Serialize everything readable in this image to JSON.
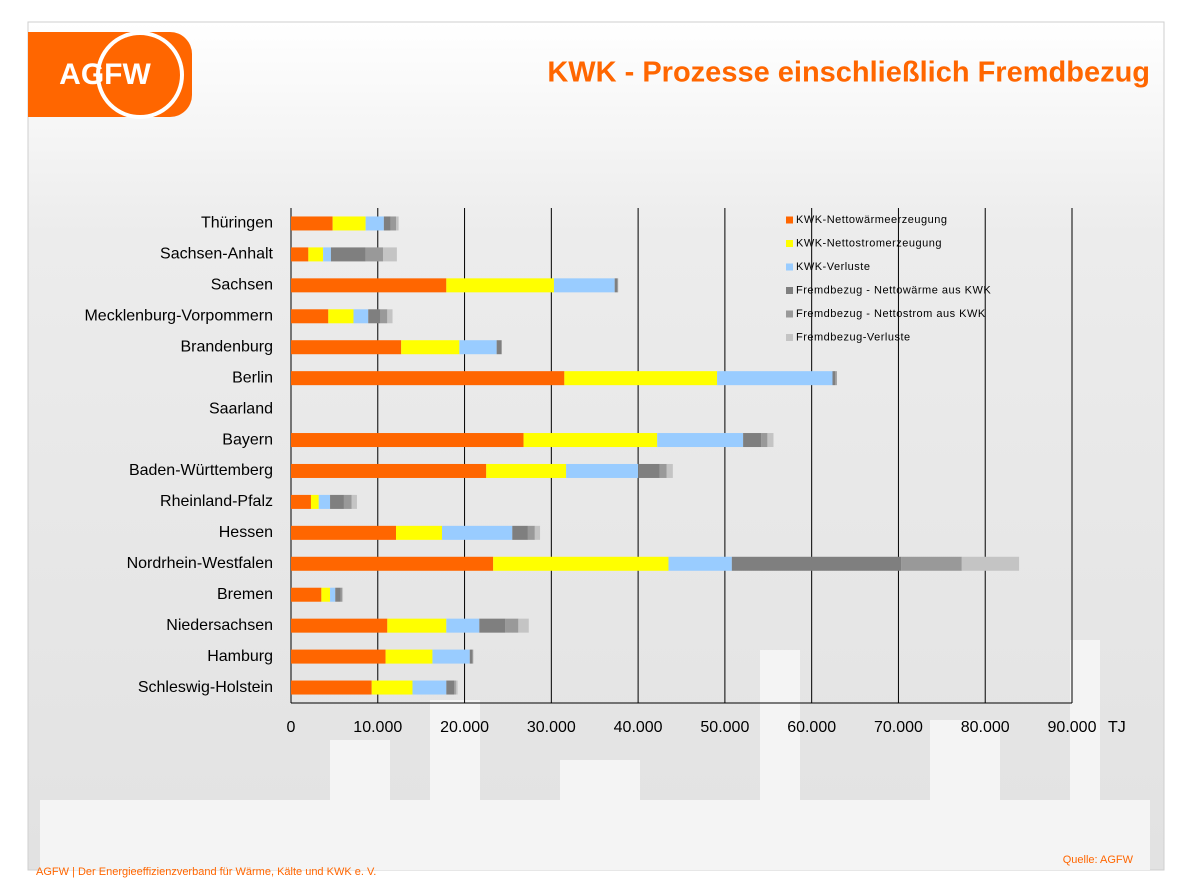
{
  "logo": "AGFW",
  "title": "KWK - Prozesse einschließlich Fremdbezug",
  "footer": "AGFW | Der Energieeffizienzverband für Wärme, Kälte und KWK e. V.",
  "source": "Quelle: AGFW",
  "chart_data": {
    "type": "stacked_bar_horizontal",
    "categories": [
      "Thüringen",
      "Sachsen-Anhalt",
      "Sachsen",
      "Mecklenburg-Vorpommern",
      "Brandenburg",
      "Berlin",
      "Saarland",
      "Bayern",
      "Baden-Württemberg",
      "Rheinland-Pfalz",
      "Hessen",
      "Nordrhein-Westfalen",
      "Bremen",
      "Niedersachsen",
      "Hamburg",
      "Schleswig-Holstein"
    ],
    "series": [
      {
        "name": "KWK-Nettowärmeerzeugung",
        "color": "#ff6600",
        "values": [
          4800,
          2000,
          17900,
          4300,
          12700,
          31500,
          0,
          26800,
          22500,
          2300,
          12100,
          23300,
          3500,
          11100,
          10900,
          9300
        ]
      },
      {
        "name": "KWK-Nettostromerzeugung",
        "color": "#ffff00",
        "values": [
          3800,
          1700,
          12400,
          2900,
          6700,
          17600,
          0,
          15400,
          9200,
          900,
          5300,
          20200,
          1000,
          6800,
          5400,
          4700
        ]
      },
      {
        "name": "KWK-Verluste",
        "color": "#99ccff",
        "values": [
          2100,
          900,
          7000,
          1700,
          4300,
          13300,
          0,
          9900,
          8300,
          1300,
          8100,
          7300,
          600,
          3800,
          4300,
          3900
        ]
      },
      {
        "name": "Fremdbezug - Nettowärme aus KWK",
        "color": "#7f7f7f",
        "values": [
          800,
          4000,
          300,
          1400,
          500,
          300,
          0,
          2100,
          2500,
          1600,
          1800,
          19500,
          600,
          3000,
          300,
          900
        ]
      },
      {
        "name": "Fremdbezug - Nettostrom aus KWK",
        "color": "#999999",
        "values": [
          600,
          2000,
          100,
          800,
          100,
          200,
          0,
          700,
          800,
          900,
          800,
          7000,
          200,
          1500,
          100,
          200
        ]
      },
      {
        "name": "Fremdbezug-Verluste",
        "color": "#c4c4c4",
        "values": [
          300,
          1600,
          0,
          600,
          0,
          0,
          0,
          700,
          700,
          600,
          600,
          6600,
          100,
          1200,
          0,
          200
        ]
      }
    ],
    "xlim": [
      0,
      90000
    ],
    "xticks": [
      0,
      {
        "value": 10000,
        "label": "10.000"
      },
      {
        "value": 20000,
        "label": "20.000"
      },
      {
        "value": 30000,
        "label": "30.000"
      },
      {
        "value": 40000,
        "label": "40.000"
      },
      {
        "value": 50000,
        "label": "50.000"
      },
      {
        "value": 60000,
        "label": "60.000"
      },
      {
        "value": 70000,
        "label": "70.000"
      },
      {
        "value": 80000,
        "label": "80.000"
      },
      {
        "value": 90000,
        "label": "90.000"
      }
    ],
    "x_unit": "TJ",
    "grid": true,
    "legend": "top-right"
  }
}
